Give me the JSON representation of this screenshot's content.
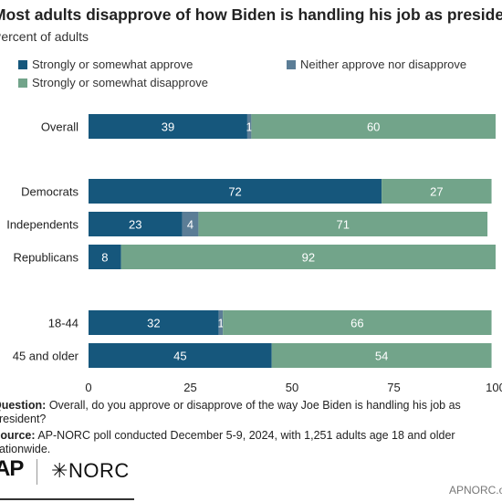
{
  "page": {
    "title": "Most adults disapprove of how Biden is handling his job as president.",
    "subtitle": "Percent of adults",
    "question_label": "Question:",
    "question_text": "Overall, do you approve or disapprove of the way Joe Biden is handling his job as president?",
    "source_label": "Source:",
    "source_text": "AP-NORC poll conducted December 5-9, 2024, with 1,251 adults age 18 and older nationwide.",
    "logo_ap": "AP",
    "logo_norc": "NORC",
    "site": "APNORC.org"
  },
  "colors": {
    "approve": "#16577c",
    "neither": "#5b7d96",
    "disapprove": "#72a48a"
  },
  "chart_data": {
    "type": "bar",
    "orientation": "horizontal",
    "stacked": true,
    "categories": [
      "Overall",
      "Democrats",
      "Independents",
      "Republicans",
      "18-44",
      "45 and older"
    ],
    "series": [
      {
        "name": "Strongly or somewhat approve",
        "values": [
          39,
          72,
          23,
          8,
          32,
          45
        ]
      },
      {
        "name": "Neither approve nor disapprove",
        "values": [
          1,
          0,
          4,
          0,
          1,
          0
        ]
      },
      {
        "name": "Strongly or somewhat disapprove",
        "values": [
          60,
          27,
          71,
          92,
          66,
          54
        ]
      }
    ],
    "xlim": [
      0,
      100
    ],
    "xticks": [
      0,
      25,
      50,
      75,
      100
    ],
    "legend": "top-left",
    "grid": false
  }
}
